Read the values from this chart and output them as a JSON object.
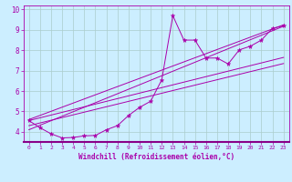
{
  "xlabel": "Windchill (Refroidissement éolien,°C)",
  "bg_color": "#cceeff",
  "grid_color": "#aacccc",
  "line_color": "#aa00aa",
  "xlim": [
    -0.5,
    23.5
  ],
  "ylim": [
    3.5,
    10.2
  ],
  "xticks": [
    0,
    1,
    2,
    3,
    4,
    5,
    6,
    7,
    8,
    9,
    10,
    11,
    12,
    13,
    14,
    15,
    16,
    17,
    18,
    19,
    20,
    21,
    22,
    23
  ],
  "yticks": [
    4,
    5,
    6,
    7,
    8,
    9,
    10
  ],
  "jagged_x": [
    0,
    1,
    2,
    3,
    4,
    5,
    6,
    7,
    8,
    9,
    10,
    11,
    12,
    13,
    14,
    15,
    16,
    17,
    18,
    19,
    20,
    21,
    22,
    23
  ],
  "jagged_y": [
    4.55,
    4.2,
    3.9,
    3.7,
    3.72,
    3.8,
    3.82,
    4.1,
    4.3,
    4.8,
    5.2,
    5.5,
    6.55,
    9.7,
    8.5,
    8.5,
    7.62,
    7.62,
    7.33,
    8.02,
    8.2,
    8.5,
    9.08,
    9.2
  ],
  "reg_lines": [
    {
      "x": [
        0,
        23
      ],
      "y": [
        4.3,
        7.35
      ]
    },
    {
      "x": [
        0,
        23
      ],
      "y": [
        4.55,
        7.65
      ]
    },
    {
      "x": [
        0,
        23
      ],
      "y": [
        4.1,
        9.18
      ]
    },
    {
      "x": [
        0,
        23
      ],
      "y": [
        4.6,
        9.25
      ]
    }
  ]
}
